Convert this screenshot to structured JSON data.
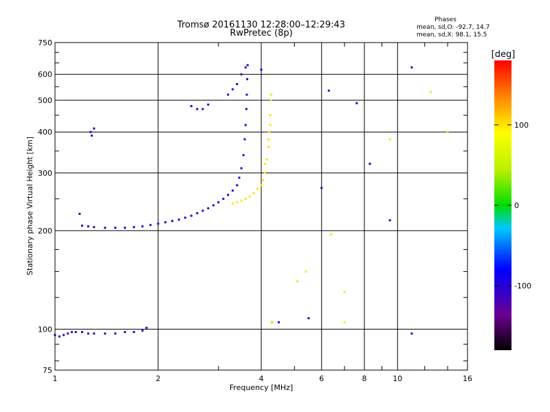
{
  "chart_data": {
    "type": "scatter",
    "title": "Tromsø 20161130 12:28:00–12:29:43",
    "subtitle": "RwPretec (8p)",
    "xlabel": "Frequency [MHz]",
    "ylabel": "Stationary phase Virtual Height [km]",
    "x_scale": "log",
    "y_scale": "log",
    "xlim": [
      1,
      16
    ],
    "ylim": [
      75,
      750
    ],
    "x_ticks": [
      1,
      2,
      4,
      6,
      8,
      10,
      16
    ],
    "x_tick_labels": [
      "1",
      "2",
      "4",
      "6",
      "8",
      "10",
      "16"
    ],
    "y_ticks": [
      75,
      100,
      200,
      300,
      400,
      500,
      600,
      750
    ],
    "y_tick_labels": [
      "75",
      "100",
      "200",
      "300",
      "400",
      "500",
      "600",
      "750"
    ],
    "grid": true,
    "stats": {
      "heading": "Phases",
      "line_o": "mean, sd,O: -92.7, 14.7",
      "line_x": "mean, sd,X:  98.1, 15.5"
    },
    "colorbar": {
      "label": "[deg]",
      "range": [
        -180,
        180
      ],
      "ticks": [
        100,
        0,
        -100
      ],
      "tick_labels": [
        "100",
        "0",
        "-100"
      ]
    },
    "series": [
      {
        "name": "O",
        "phase_deg": -100,
        "points": [
          [
            1.0,
            96
          ],
          [
            1.03,
            95
          ],
          [
            1.06,
            96
          ],
          [
            1.09,
            97
          ],
          [
            1.12,
            98
          ],
          [
            1.15,
            98
          ],
          [
            1.2,
            98
          ],
          [
            1.25,
            97
          ],
          [
            1.3,
            97
          ],
          [
            1.4,
            97
          ],
          [
            1.5,
            97
          ],
          [
            1.6,
            98
          ],
          [
            1.7,
            98
          ],
          [
            1.8,
            99
          ],
          [
            1.85,
            101
          ],
          [
            1.2,
            207
          ],
          [
            1.25,
            206
          ],
          [
            1.3,
            205
          ],
          [
            1.4,
            204
          ],
          [
            1.5,
            204
          ],
          [
            1.6,
            204
          ],
          [
            1.7,
            205
          ],
          [
            1.8,
            206
          ],
          [
            1.9,
            208
          ],
          [
            2.0,
            210
          ],
          [
            2.1,
            212
          ],
          [
            2.2,
            214
          ],
          [
            2.3,
            216
          ],
          [
            2.4,
            219
          ],
          [
            2.5,
            222
          ],
          [
            2.6,
            226
          ],
          [
            2.7,
            230
          ],
          [
            2.8,
            234
          ],
          [
            2.9,
            239
          ],
          [
            3.0,
            244
          ],
          [
            3.1,
            250
          ],
          [
            3.2,
            257
          ],
          [
            3.3,
            265
          ],
          [
            3.4,
            275
          ],
          [
            3.45,
            290
          ],
          [
            3.5,
            310
          ],
          [
            3.55,
            340
          ],
          [
            3.58,
            380
          ],
          [
            3.6,
            420
          ],
          [
            3.62,
            470
          ],
          [
            3.63,
            520
          ],
          [
            3.64,
            580
          ],
          [
            3.65,
            640
          ],
          [
            1.18,
            225
          ],
          [
            1.27,
            400
          ],
          [
            1.28,
            390
          ],
          [
            1.3,
            410
          ],
          [
            3.2,
            520
          ],
          [
            3.3,
            540
          ],
          [
            3.4,
            560
          ],
          [
            3.5,
            600
          ],
          [
            3.6,
            630
          ],
          [
            2.5,
            480
          ],
          [
            2.6,
            470
          ],
          [
            2.7,
            470
          ],
          [
            2.8,
            485
          ],
          [
            4.0,
            620
          ],
          [
            4.3,
            105
          ],
          [
            4.5,
            105
          ],
          [
            5.5,
            108
          ],
          [
            6.3,
            535
          ],
          [
            7.6,
            490
          ],
          [
            8.3,
            320
          ],
          [
            9.5,
            215
          ],
          [
            11.0,
            630
          ],
          [
            11.0,
            97
          ],
          [
            6.0,
            270
          ]
        ]
      },
      {
        "name": "X",
        "phase_deg": 100,
        "points": [
          [
            3.3,
            242
          ],
          [
            3.4,
            244
          ],
          [
            3.5,
            247
          ],
          [
            3.6,
            250
          ],
          [
            3.7,
            254
          ],
          [
            3.8,
            260
          ],
          [
            3.9,
            268
          ],
          [
            4.0,
            275
          ],
          [
            4.05,
            285
          ],
          [
            4.1,
            300
          ],
          [
            4.15,
            330
          ],
          [
            4.2,
            360
          ],
          [
            4.22,
            400
          ],
          [
            4.25,
            450
          ],
          [
            4.27,
            500
          ],
          [
            4.28,
            520
          ],
          [
            4.1,
            320
          ],
          [
            4.2,
            380
          ],
          [
            4.25,
            420
          ],
          [
            4.3,
            105
          ],
          [
            5.1,
            140
          ],
          [
            5.4,
            150
          ],
          [
            6.4,
            195
          ],
          [
            7.0,
            130
          ],
          [
            7.0,
            105
          ],
          [
            9.5,
            380
          ],
          [
            12.5,
            530
          ],
          [
            14.0,
            400
          ]
        ]
      }
    ]
  }
}
